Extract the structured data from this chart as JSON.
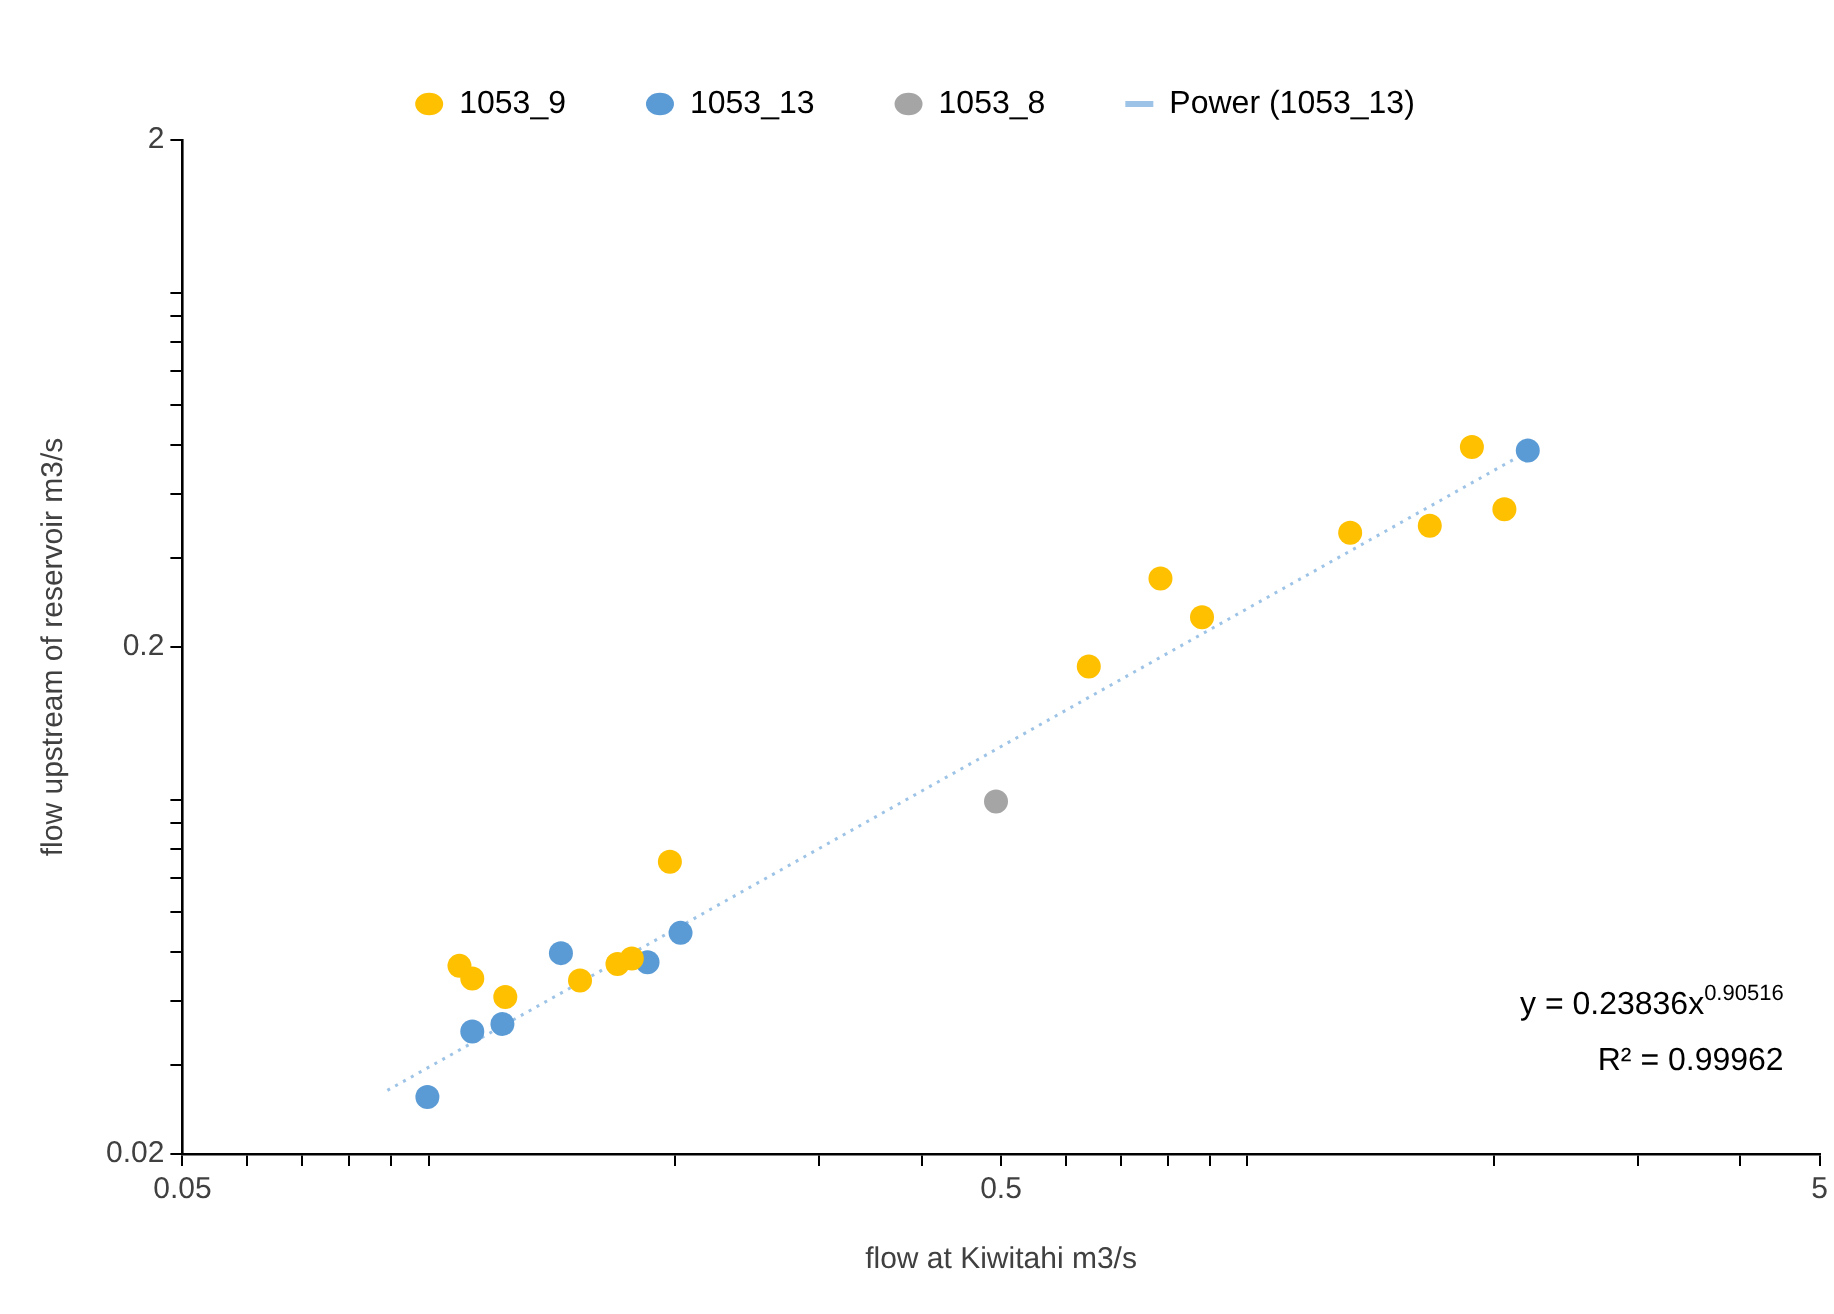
{
  "chart_data": {
    "type": "scatter",
    "xlabel": "flow at Kiwitahi m3/s",
    "ylabel": "flow upstream of reservoir m3/s",
    "log": "xy",
    "grid": false,
    "legend": "top",
    "marker": "circle",
    "xlim": [
      0.05,
      5
    ],
    "ylim": [
      0.02,
      2
    ],
    "xticks": [
      0.05,
      {
        "value": 0.06,
        "label": null
      },
      {
        "value": 0.07,
        "label": null
      },
      {
        "value": 0.08,
        "label": null
      },
      {
        "value": 0.09,
        "label": null
      },
      {
        "value": 0.1,
        "label": null
      },
      {
        "value": 0.2,
        "label": null
      },
      {
        "value": 0.3,
        "label": null
      },
      {
        "value": 0.4,
        "label": null
      },
      0.5,
      {
        "value": 0.6,
        "label": null
      },
      {
        "value": 0.7,
        "label": null
      },
      {
        "value": 0.8,
        "label": null
      },
      {
        "value": 0.9,
        "label": null
      },
      {
        "value": 1,
        "label": null
      },
      {
        "value": 2,
        "label": null
      },
      {
        "value": 3,
        "label": null
      },
      {
        "value": 4,
        "label": null
      },
      5
    ],
    "yticks": [
      0.02,
      {
        "value": 0.03,
        "label": null
      },
      {
        "value": 0.04,
        "label": null
      },
      {
        "value": 0.05,
        "label": null
      },
      {
        "value": 0.06,
        "label": null
      },
      {
        "value": 0.07,
        "label": null
      },
      {
        "value": 0.08,
        "label": null
      },
      {
        "value": 0.09,
        "label": null
      },
      {
        "value": 0.1,
        "label": null
      },
      0.2,
      {
        "value": 0.3,
        "label": null
      },
      {
        "value": 0.4,
        "label": null
      },
      {
        "value": 0.5,
        "label": null
      },
      {
        "value": 0.6,
        "label": null
      },
      {
        "value": 0.7,
        "label": null
      },
      {
        "value": 0.8,
        "label": null
      },
      {
        "value": 0.9,
        "label": null
      },
      {
        "value": 1,
        "label": null
      },
      2
    ],
    "series": [
      {
        "name": "1053_9",
        "color": "#ffc000",
        "x": [
          0.109,
          0.113,
          0.124,
          0.153,
          0.17,
          0.177,
          0.197,
          0.64,
          0.783,
          0.88,
          1.335,
          1.67,
          1.88,
          2.06
        ],
        "values": [
          0.047,
          0.0444,
          0.0408,
          0.044,
          0.0474,
          0.0486,
          0.0754,
          0.183,
          0.273,
          0.229,
          0.336,
          0.347,
          0.496,
          0.374
        ]
      },
      {
        "name": "1053_13",
        "color": "#5b9bd5",
        "x": [
          0.0996,
          0.113,
          0.123,
          0.145,
          0.185,
          0.203,
          2.2
        ],
        "values": [
          0.0259,
          0.0349,
          0.0361,
          0.0498,
          0.0478,
          0.0546,
          0.488
        ]
      },
      {
        "name": "1053_8",
        "color": "#a5a5a5",
        "x": [
          0.493
        ],
        "values": [
          0.0992
        ]
      },
      {
        "name": "Power (1053_13)",
        "type": "line",
        "color": "#9dc3e6",
        "line_style": "dotted",
        "marker": "none",
        "x": [
          0.089,
          2.2
        ],
        "values": [
          0.0267,
          0.486
        ]
      }
    ],
    "annotations": [
      "y = 0.23836x$^{0.90516}$",
      "R² = 0.99962"
    ]
  }
}
